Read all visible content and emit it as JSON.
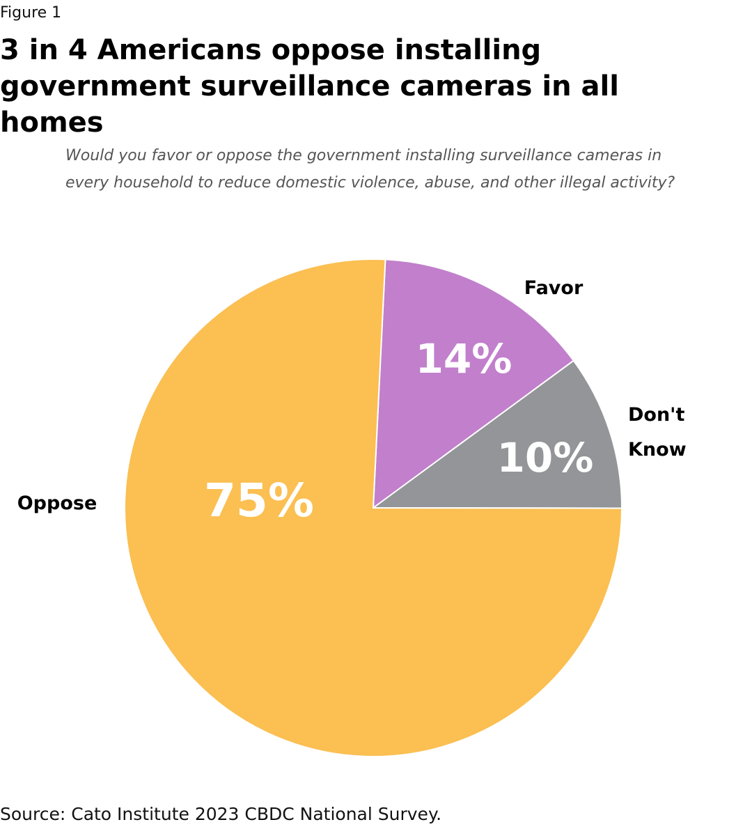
{
  "figure_label": "Figure 1",
  "title": "3 in 4 Americans oppose installing government surveillance cameras in all homes",
  "question": "Would you favor or oppose the government installing surveillance cameras in every household to reduce domestic violence, abuse, and other illegal activity?",
  "source": "Source: Cato Institute 2023 CBDC National Survey.",
  "chart_data": {
    "type": "pie",
    "title": "3 in 4 Americans oppose installing government surveillance cameras in all homes",
    "slices": [
      {
        "name": "Favor",
        "value": 14,
        "label": "14%",
        "color": "#C17FCC",
        "category_lines": [
          "Favor"
        ]
      },
      {
        "name": "Don't Know",
        "value": 10,
        "label": "10%",
        "color": "#939598",
        "category_lines": [
          "Don't",
          "Know"
        ]
      },
      {
        "name": "Oppose",
        "value": 75,
        "label": "75%",
        "color": "#FBBF52",
        "category_lines": [
          "Oppose"
        ]
      }
    ],
    "legend": "none"
  }
}
